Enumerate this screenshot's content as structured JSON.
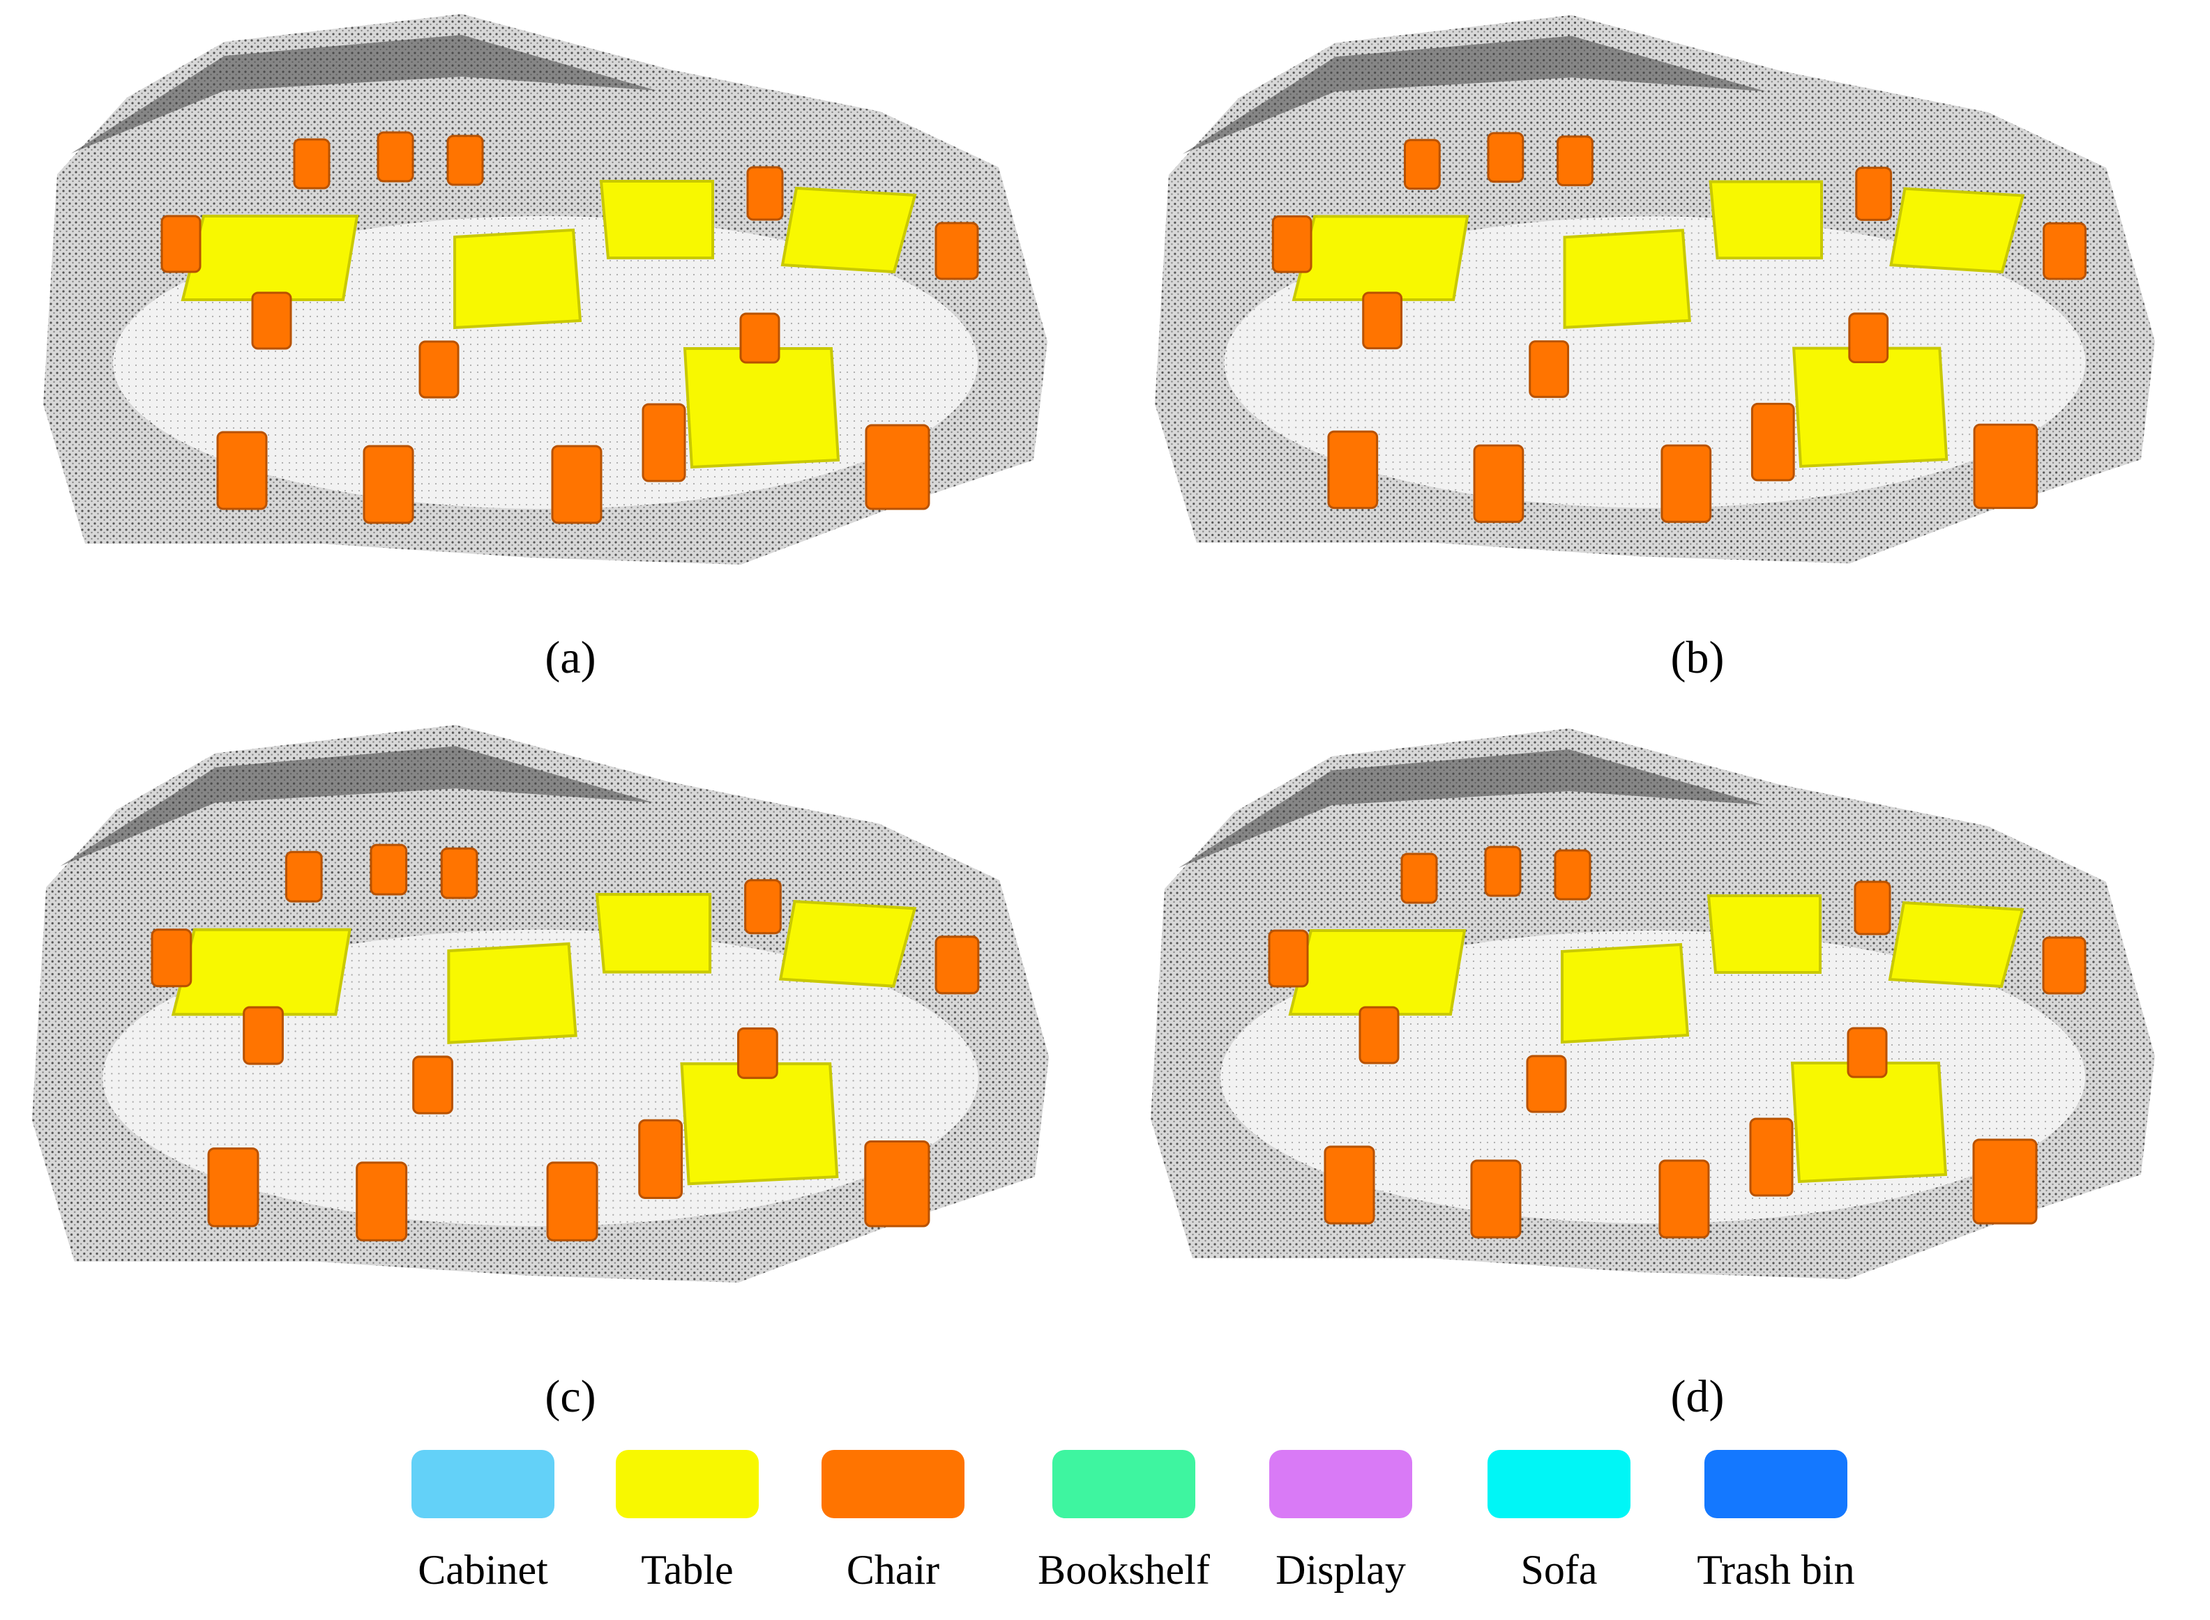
{
  "panels": [
    {
      "label": "(a)"
    },
    {
      "label": "(b)"
    },
    {
      "label": "(c)"
    },
    {
      "label": "(d)"
    }
  ],
  "legend": [
    {
      "name": "Cabinet",
      "color": "#63d1f8"
    },
    {
      "name": "Table",
      "color": "#f8f800"
    },
    {
      "name": "Chair",
      "color": "#ff7400"
    },
    {
      "name": "Bookshelf",
      "color": "#3ef5a0"
    },
    {
      "name": "Display",
      "color": "#d97af6"
    },
    {
      "name": "Sofa",
      "color": "#00f6f6"
    },
    {
      "name": "Trash bin",
      "color": "#1478ff"
    }
  ]
}
